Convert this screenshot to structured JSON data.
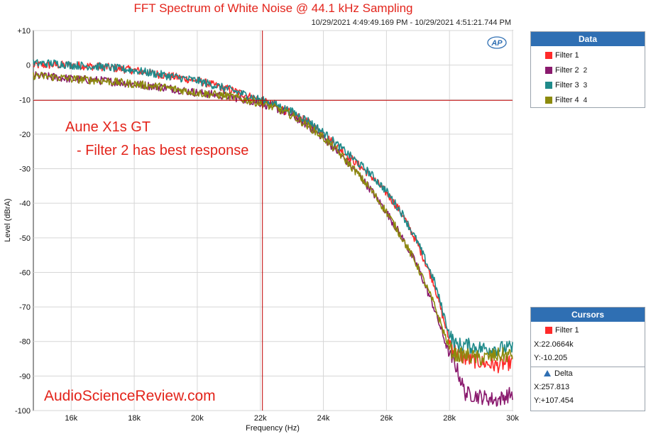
{
  "chart_data": {
    "type": "line",
    "title": "FFT Spectrum of White Noise @ 44.1 kHz Sampling",
    "timestamp": "10/29/2021 4:49:49.169 PM - 10/29/2021 4:51:21.744 PM",
    "xlabel": "Frequency (Hz)",
    "ylabel": "Level (dBrA)",
    "xlim": [
      14800,
      30000
    ],
    "ylim": [
      -100,
      10
    ],
    "x_ticks": [
      16000,
      18000,
      20000,
      22000,
      24000,
      26000,
      28000,
      30000
    ],
    "x_tick_labels": [
      "16k",
      "18k",
      "20k",
      "22k",
      "24k",
      "26k",
      "28k",
      "30k"
    ],
    "y_ticks": [
      10,
      0,
      -10,
      -20,
      -30,
      -40,
      -50,
      -60,
      -70,
      -80,
      -90,
      -100
    ],
    "y_tick_labels": [
      "+10",
      "0",
      "-10",
      "-20",
      "-30",
      "-40",
      "-50",
      "-60",
      "-70",
      "-80",
      "-90",
      "-100"
    ],
    "grid": true,
    "legend_position": "right",
    "series": [
      {
        "name": "Filter 1",
        "color": "#ff2a2a",
        "x": [
          14800,
          15500,
          16000,
          17000,
          18000,
          19000,
          20000,
          21000,
          21500,
          22000,
          22500,
          23000,
          23500,
          24000,
          24500,
          25000,
          25500,
          26000,
          26500,
          27000,
          27500,
          28000,
          28200,
          28500,
          29000,
          29500,
          30000
        ],
        "y": [
          0,
          0,
          0,
          -0.5,
          -1.5,
          -3,
          -4.5,
          -7,
          -8.5,
          -10.2,
          -12,
          -14,
          -16.5,
          -20,
          -24,
          -28,
          -32,
          -37,
          -43,
          -52,
          -63,
          -80,
          -83,
          -85,
          -86,
          -87,
          -86
        ]
      },
      {
        "name": "Filter 2",
        "color": "#8a1a6e",
        "x": [
          14800,
          15500,
          16000,
          17000,
          18000,
          19000,
          20000,
          21000,
          21500,
          22000,
          22500,
          23000,
          23500,
          24000,
          24500,
          25000,
          25500,
          26000,
          26500,
          27000,
          27500,
          28000,
          28200,
          28500,
          29000,
          29500,
          30000
        ],
        "y": [
          -3,
          -3.5,
          -4,
          -4.5,
          -5.5,
          -6.5,
          -8,
          -9,
          -10,
          -11,
          -12.5,
          -14.5,
          -17.5,
          -21,
          -25.5,
          -30.5,
          -36,
          -42.5,
          -50,
          -58.5,
          -70,
          -84,
          -87,
          -95,
          -96,
          -97,
          -95
        ]
      },
      {
        "name": "Filter 3",
        "color": "#1f8a8a",
        "x": [
          14800,
          15500,
          16000,
          17000,
          18000,
          19000,
          20000,
          21000,
          21500,
          22000,
          22500,
          23000,
          23500,
          24000,
          24500,
          25000,
          25500,
          26000,
          26500,
          27000,
          27500,
          28000,
          28200,
          28500,
          29000,
          29500,
          30000
        ],
        "y": [
          0.5,
          0.5,
          0,
          -0.5,
          -1.5,
          -3,
          -4.5,
          -7,
          -8.5,
          -10,
          -11.5,
          -13.5,
          -16,
          -19.5,
          -23.5,
          -27.5,
          -31.5,
          -36.5,
          -43,
          -51.5,
          -62,
          -78,
          -81,
          -81,
          -82,
          -82,
          -82
        ]
      },
      {
        "name": "Filter 4",
        "color": "#8c8a0d",
        "x": [
          14800,
          15500,
          16000,
          17000,
          18000,
          19000,
          20000,
          21000,
          21500,
          22000,
          22500,
          23000,
          23500,
          24000,
          24500,
          25000,
          25500,
          26000,
          26500,
          27000,
          27500,
          28000,
          28200,
          28500,
          29000,
          29500,
          30000
        ],
        "y": [
          -3,
          -3.5,
          -4,
          -4.5,
          -5.5,
          -6.5,
          -8,
          -9,
          -10,
          -11,
          -12.5,
          -14.5,
          -17.5,
          -21,
          -25.5,
          -30.5,
          -36,
          -42.5,
          -50,
          -58.5,
          -69,
          -82,
          -84,
          -84,
          -85,
          -84,
          -84
        ]
      }
    ],
    "cursor": {
      "x": 22066.4,
      "y": -10.205
    }
  },
  "annotations": {
    "line1": "Aune X1s GT",
    "line2": "- Filter 2 has best response",
    "watermark": "AudioScienceReview.com"
  },
  "logo_text": "AP",
  "data_panel": {
    "title": "Data",
    "items": [
      {
        "label": "Filter 1",
        "suffix": "",
        "color": "#ff2a2a"
      },
      {
        "label": "Filter 2",
        "suffix": "2",
        "color": "#8a1a6e"
      },
      {
        "label": "Filter 3",
        "suffix": "3",
        "color": "#1f8a8a"
      },
      {
        "label": "Filter 4",
        "suffix": "4",
        "color": "#8c8a0d"
      }
    ]
  },
  "cursors_panel": {
    "title": "Cursors",
    "filter_label": "Filter 1",
    "filter_color": "#ff2a2a",
    "x_value": "X:22.0664k",
    "y_value": "Y:-10.205",
    "delta_label": "Delta",
    "delta_x": "X:257.813",
    "delta_y": "Y:+107.454"
  }
}
